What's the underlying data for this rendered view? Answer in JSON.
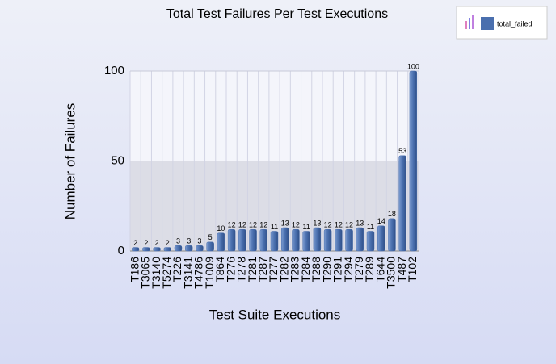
{
  "chart_data": {
    "type": "bar",
    "title": "Total Test Failures Per Test Executions",
    "x_label": "Test Suite Executions",
    "y_label": "Number of Failures",
    "categories": [
      "T186",
      "T3065",
      "T3140",
      "T5274",
      "T226",
      "T3141",
      "T4786",
      "T1009",
      "T864",
      "T276",
      "T278",
      "T281",
      "T287",
      "T277",
      "T282",
      "T283",
      "T284",
      "T288",
      "T290",
      "T291",
      "T294",
      "T279",
      "T289",
      "T644",
      "T3500",
      "T487",
      "T102"
    ],
    "series": [
      {
        "name": "total_failed",
        "color": "#4a6fae",
        "values": [
          2,
          2,
          2,
          2,
          3,
          3,
          3,
          5,
          10,
          12,
          12,
          12,
          12,
          11,
          13,
          12,
          11,
          13,
          12,
          12,
          12,
          13,
          11,
          14,
          18,
          53,
          100
        ]
      }
    ],
    "ylim": [
      0,
      100
    ],
    "yticks": [
      0,
      50,
      100
    ],
    "grid": true,
    "legend": "top-right"
  }
}
